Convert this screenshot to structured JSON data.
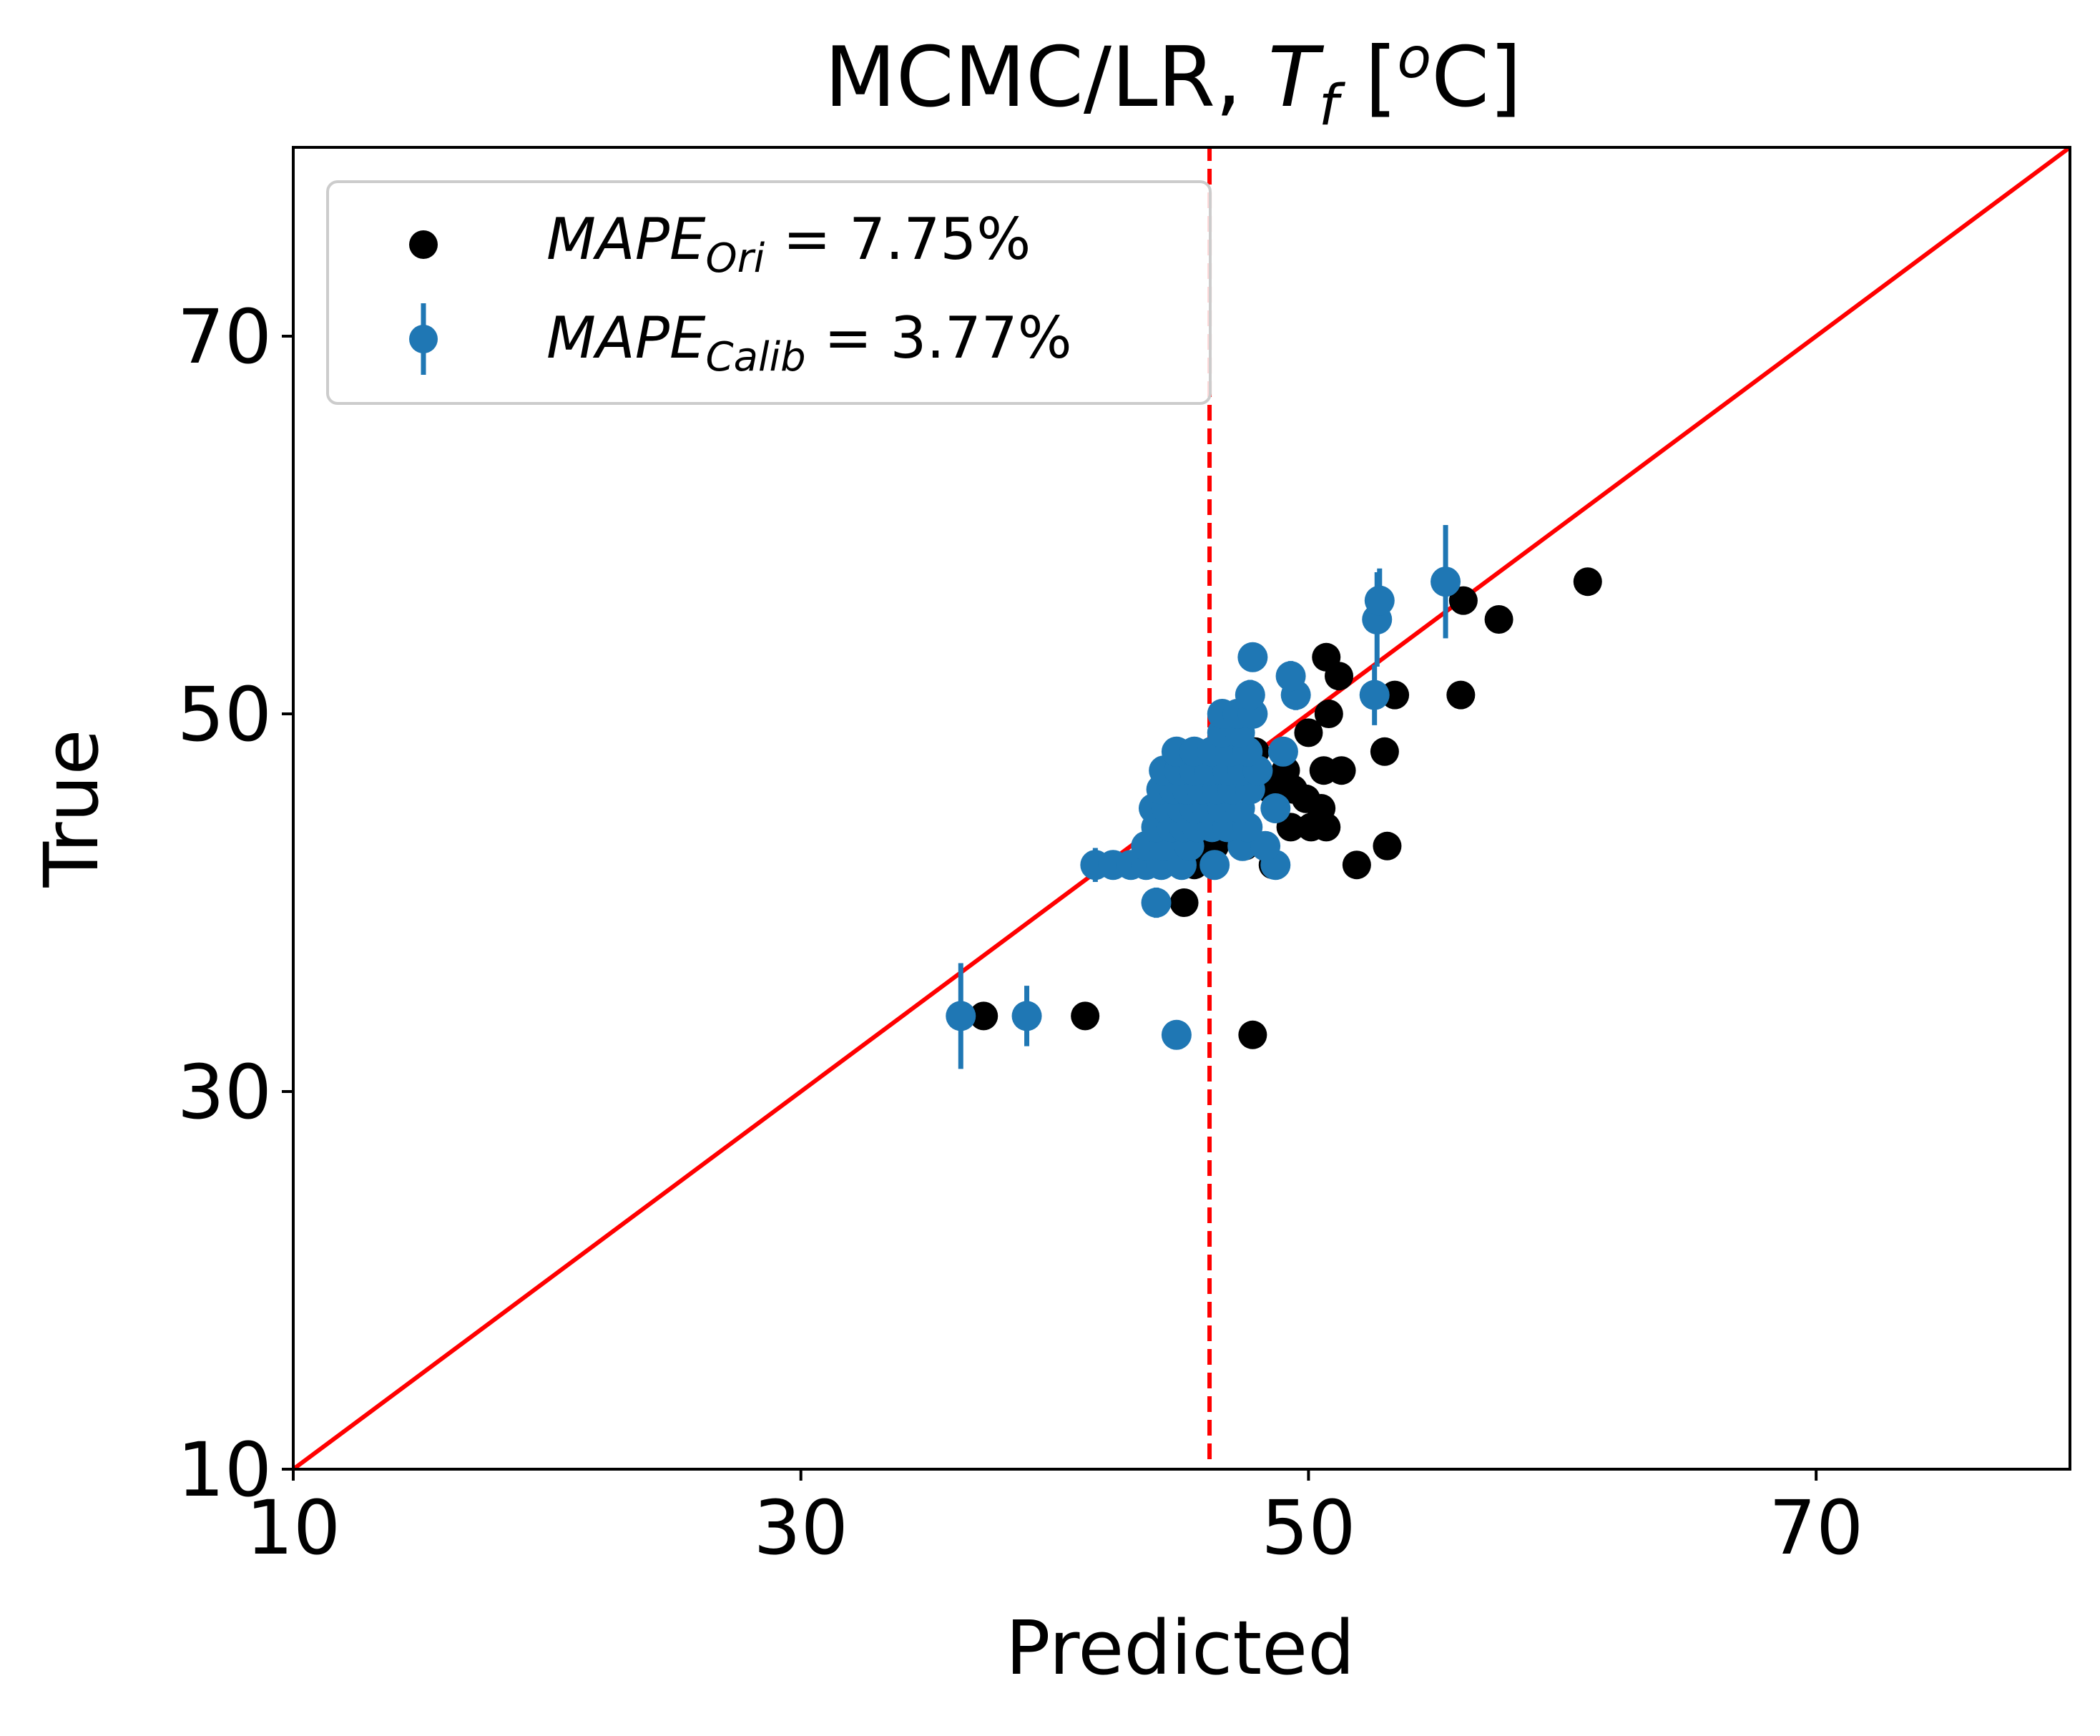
{
  "chart_data": {
    "type": "scatter",
    "title_main": "MCMC/LR, ",
    "title_sym": "T",
    "title_sub": "f",
    "title_unit_pre": " [",
    "title_unit_sup": "o",
    "title_unit_post": "C]",
    "xlabel": "Predicted",
    "ylabel": "True",
    "xlim": [
      10,
      80
    ],
    "ylim": [
      10,
      80
    ],
    "xticks": [
      10,
      30,
      50,
      70
    ],
    "yticks": [
      10,
      30,
      50,
      70
    ],
    "grid": false,
    "legend_position": "top-left",
    "reference_line": {
      "type": "identity",
      "color": "#ff0000"
    },
    "threshold_line": {
      "x": 46.1,
      "color": "#ff0000",
      "style": "dashed"
    },
    "series": [
      {
        "kind": "original",
        "legend_main": "MAPE",
        "legend_sub": "Ori",
        "legend_value": " = 7.75%",
        "color": "#000000",
        "points": [
          [
            37.2,
            34
          ],
          [
            41.2,
            34
          ],
          [
            47.8,
            33
          ],
          [
            45.1,
            40
          ],
          [
            44.2,
            42
          ],
          [
            45.5,
            42
          ],
          [
            46.3,
            43
          ],
          [
            47.5,
            43
          ],
          [
            48.6,
            42
          ],
          [
            49.3,
            44
          ],
          [
            50.1,
            44
          ],
          [
            50.7,
            44
          ],
          [
            51.9,
            42
          ],
          [
            53.1,
            43
          ],
          [
            50.5,
            45
          ],
          [
            49.4,
            46
          ],
          [
            50.6,
            47
          ],
          [
            51.3,
            47
          ],
          [
            53.0,
            48
          ],
          [
            50.0,
            49
          ],
          [
            50.8,
            50
          ],
          [
            51.2,
            52
          ],
          [
            50.7,
            53
          ],
          [
            53.4,
            51
          ],
          [
            56.0,
            51
          ],
          [
            57.5,
            55
          ],
          [
            56.1,
            56
          ],
          [
            61.0,
            57
          ],
          [
            48.5,
            46
          ],
          [
            49.1,
            47
          ],
          [
            47.9,
            48
          ],
          [
            48.7,
            45
          ],
          [
            49.9,
            45.5
          ]
        ]
      },
      {
        "kind": "calibrated",
        "legend_main": "MAPE",
        "legend_sub": "Calib",
        "legend_value": " = 3.77%",
        "color": "#1f77b4",
        "points": [
          [
            36.3,
            34,
            2.8
          ],
          [
            38.9,
            34,
            1.6
          ],
          [
            44.8,
            33,
            0.6
          ],
          [
            44.0,
            40,
            0.8
          ],
          [
            41.6,
            42,
            0.9
          ],
          [
            42.3,
            42,
            0.6
          ],
          [
            43.0,
            42,
            0.6
          ],
          [
            43.6,
            42,
            0.5
          ],
          [
            44.2,
            42,
            0.6
          ],
          [
            45.0,
            42,
            0.5
          ],
          [
            46.3,
            42,
            0.6
          ],
          [
            48.7,
            42,
            0.7
          ],
          [
            43.6,
            43,
            0.6
          ],
          [
            44.3,
            43,
            0.6
          ],
          [
            45.3,
            43,
            0.5
          ],
          [
            47.4,
            43,
            0.6
          ],
          [
            48.3,
            43,
            0.6
          ],
          [
            44.0,
            44,
            0.6
          ],
          [
            44.6,
            44,
            0.5
          ],
          [
            45.1,
            44,
            0.6
          ],
          [
            45.6,
            44,
            0.5
          ],
          [
            46.2,
            44,
            0.6
          ],
          [
            46.8,
            44,
            0.5
          ],
          [
            47.6,
            44,
            0.6
          ],
          [
            43.9,
            45,
            0.6
          ],
          [
            44.4,
            45,
            0.6
          ],
          [
            45.0,
            45,
            0.5
          ],
          [
            45.5,
            45,
            0.5
          ],
          [
            46.0,
            45,
            0.6
          ],
          [
            46.6,
            45,
            0.5
          ],
          [
            47.3,
            45,
            0.6
          ],
          [
            48.7,
            45,
            0.7
          ],
          [
            44.2,
            46,
            0.6
          ],
          [
            44.7,
            46,
            0.5
          ],
          [
            45.2,
            46,
            0.6
          ],
          [
            45.8,
            46,
            0.5
          ],
          [
            46.4,
            46,
            0.6
          ],
          [
            47.0,
            46,
            0.5
          ],
          [
            47.7,
            46,
            0.6
          ],
          [
            44.3,
            47,
            0.6
          ],
          [
            44.9,
            47,
            0.5
          ],
          [
            45.5,
            47,
            0.6
          ],
          [
            46.1,
            47,
            0.5
          ],
          [
            46.8,
            47,
            0.6
          ],
          [
            47.4,
            47,
            0.5
          ],
          [
            48.0,
            47,
            0.6
          ],
          [
            44.8,
            48,
            0.6
          ],
          [
            45.5,
            48,
            0.6
          ],
          [
            46.2,
            48,
            0.5
          ],
          [
            46.9,
            48,
            0.6
          ],
          [
            47.6,
            48,
            0.6
          ],
          [
            49.0,
            48,
            0.7
          ],
          [
            46.6,
            49,
            0.6
          ],
          [
            47.3,
            49,
            0.6
          ],
          [
            46.6,
            50,
            0.6
          ],
          [
            47.2,
            50,
            0.6
          ],
          [
            47.8,
            50,
            0.7
          ],
          [
            47.7,
            51,
            0.8
          ],
          [
            49.5,
            51,
            0.8
          ],
          [
            52.6,
            51,
            1.6
          ],
          [
            49.3,
            52,
            0.8
          ],
          [
            47.8,
            53,
            0.6
          ],
          [
            52.7,
            55,
            2.5
          ],
          [
            52.8,
            56,
            1.7
          ],
          [
            55.4,
            57,
            3.0
          ]
        ]
      }
    ]
  }
}
